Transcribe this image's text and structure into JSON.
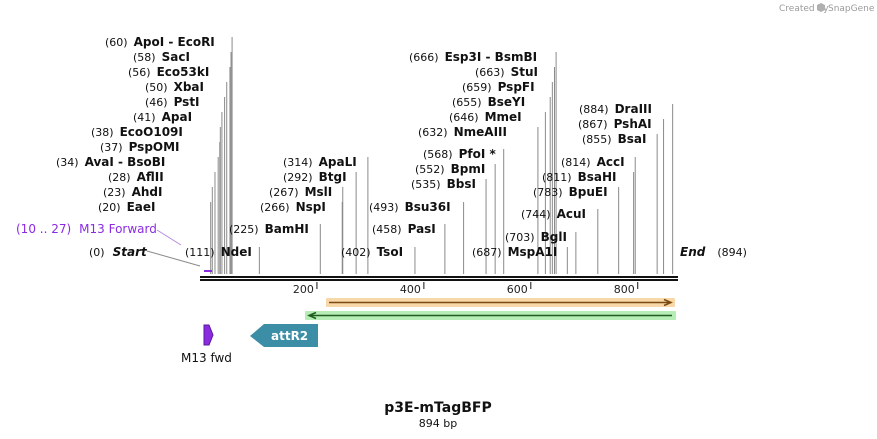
{
  "watermark": {
    "prefix": "Created by",
    "brand": "SnapGene"
  },
  "sequence": {
    "name": "p3E-mTagBFP",
    "length_label": "894 bp",
    "length": 894
  },
  "markers": {
    "start_pos": "(0)",
    "start_label": "Start",
    "end_label": "End",
    "end_pos": "(894)"
  },
  "primer_label": {
    "range": "(10 .. 27)",
    "name": "M13 Forward"
  },
  "ticks": [
    200,
    400,
    600,
    800
  ],
  "sites": [
    {
      "pos": "(60)",
      "name": "ApoI  - EcoRI",
      "bp": 60
    },
    {
      "pos": "(58)",
      "name": "SacI",
      "bp": 58
    },
    {
      "pos": "(56)",
      "name": "Eco53kI",
      "bp": 56
    },
    {
      "pos": "(50)",
      "name": "XbaI",
      "bp": 50
    },
    {
      "pos": "(46)",
      "name": "PstI",
      "bp": 46
    },
    {
      "pos": "(41)",
      "name": "ApaI",
      "bp": 41
    },
    {
      "pos": "(38)",
      "name": "EcoO109I",
      "bp": 38
    },
    {
      "pos": "(37)",
      "name": "PspOMI",
      "bp": 37
    },
    {
      "pos": "(34)",
      "name": "AvaI  - BsoBI",
      "bp": 34
    },
    {
      "pos": "(28)",
      "name": "AflII",
      "bp": 28
    },
    {
      "pos": "(23)",
      "name": "AhdI",
      "bp": 23
    },
    {
      "pos": "(20)",
      "name": "EaeI",
      "bp": 20
    },
    {
      "pos": "(111)",
      "name": "NdeI",
      "bp": 111
    },
    {
      "pos": "(225)",
      "name": "BamHI",
      "bp": 225
    },
    {
      "pos": "(314)",
      "name": "ApaLI",
      "bp": 314
    },
    {
      "pos": "(292)",
      "name": "BtgI",
      "bp": 292
    },
    {
      "pos": "(267)",
      "name": "MslI",
      "bp": 267
    },
    {
      "pos": "(266)",
      "name": "NspI",
      "bp": 266
    },
    {
      "pos": "(402)",
      "name": "TsoI",
      "bp": 402
    },
    {
      "pos": "(493)",
      "name": "Bsu36I",
      "bp": 493
    },
    {
      "pos": "(458)",
      "name": "PasI",
      "bp": 458
    },
    {
      "pos": "(666)",
      "name": "Esp3I  - BsmBI",
      "bp": 666
    },
    {
      "pos": "(663)",
      "name": "StuI",
      "bp": 663
    },
    {
      "pos": "(659)",
      "name": "PspFI",
      "bp": 659
    },
    {
      "pos": "(655)",
      "name": "BseYI",
      "bp": 655
    },
    {
      "pos": "(646)",
      "name": "MmeI",
      "bp": 646
    },
    {
      "pos": "(632)",
      "name": "NmeAIII",
      "bp": 632
    },
    {
      "pos": "(568)",
      "name": "PfoI *",
      "bp": 568
    },
    {
      "pos": "(552)",
      "name": "BpmI",
      "bp": 552
    },
    {
      "pos": "(535)",
      "name": "BbsI",
      "bp": 535
    },
    {
      "pos": "(687)",
      "name": "MspA1I",
      "bp": 687
    },
    {
      "pos": "(703)",
      "name": "BglI",
      "bp": 703
    },
    {
      "pos": "(744)",
      "name": "AcuI",
      "bp": 744
    },
    {
      "pos": "(783)",
      "name": "BpuEI",
      "bp": 783
    },
    {
      "pos": "(811)",
      "name": "BsaHI",
      "bp": 811
    },
    {
      "pos": "(814)",
      "name": "AccI",
      "bp": 814
    },
    {
      "pos": "(855)",
      "name": "BsaI",
      "bp": 855
    },
    {
      "pos": "(867)",
      "name": "PshAI",
      "bp": 867
    },
    {
      "pos": "(884)",
      "name": "DraIII",
      "bp": 884
    }
  ],
  "features": [
    {
      "name": "M13 fwd",
      "start_bp": 10,
      "end_bp": 27,
      "color": "#8a2be2",
      "strand": "forward"
    },
    {
      "name": "attR2",
      "start_bp": 95,
      "end_bp": 220,
      "color": "#3b8ea5",
      "strand": "reverse"
    }
  ],
  "colors": {
    "backbone": "#111111",
    "orange_bar": "#f0a85a",
    "green_bar": "#5cc05c",
    "lead": "#8a8a8a",
    "primer": "#8a2be2",
    "watermark": "#9a9a9a"
  }
}
